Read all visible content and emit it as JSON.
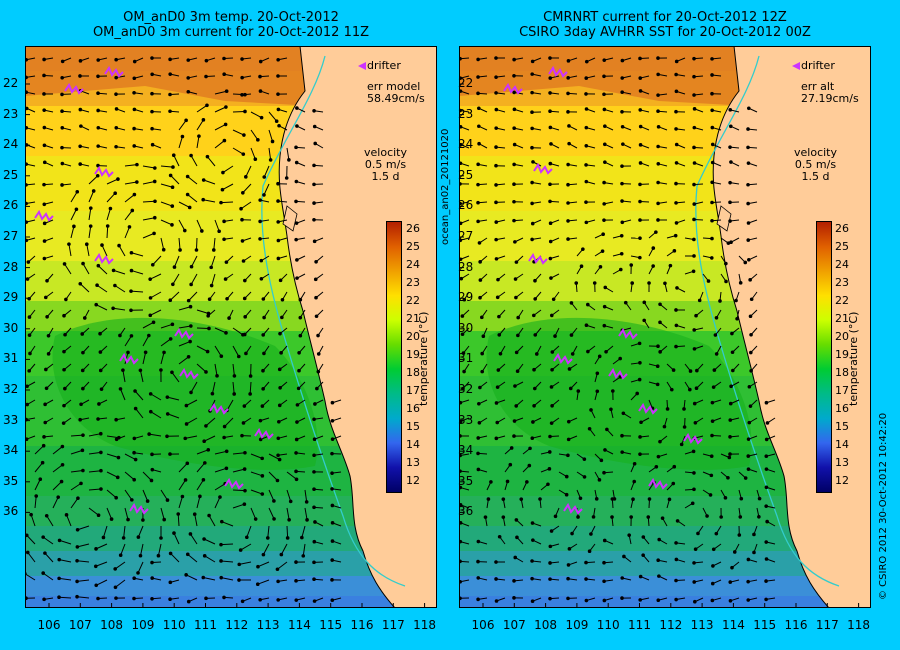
{
  "panels": [
    {
      "title_line1": "OM_anD0 3m temp. 20-Oct-2012",
      "title_line2": "OM_anD0 3m current for 20-Oct-2012 11Z",
      "err_label": "err model",
      "err_value": "58.49cm/s",
      "drifter_label": "drifter",
      "velocity_label": "velocity",
      "velocity_speed": "0.5 m/s",
      "velocity_time": "1.5 d"
    },
    {
      "title_line1": "CMRNRT current for 20-Oct-2012 12Z",
      "title_line2": "CSIRO 3day AVHRR SST for 20-Oct-2012 00Z",
      "err_label": "err alt",
      "err_value": "27.19cm/s",
      "drifter_label": "drifter",
      "velocity_label": "velocity",
      "velocity_speed": "0.5 m/s",
      "velocity_time": "1.5 d"
    }
  ],
  "colorbar": {
    "label": "temperature (°C)",
    "ticks": [
      "26",
      "25",
      "24",
      "23",
      "22",
      "21",
      "20",
      "19",
      "18",
      "17",
      "16",
      "15",
      "14",
      "13",
      "12"
    ]
  },
  "lat_ticks": [
    "22",
    "23",
    "24",
    "25",
    "26",
    "27",
    "28",
    "29",
    "30",
    "31",
    "32",
    "33",
    "34",
    "35",
    "36"
  ],
  "lon_ticks": [
    "106",
    "107",
    "108",
    "109",
    "110",
    "111",
    "112",
    "113",
    "114",
    "115",
    "116",
    "117",
    "118"
  ],
  "side_left": "ocean_an02_20121020",
  "side_right": "© CSIRO 2012   30-Oct-2012 10:42:20",
  "colors": {
    "background": "#00ccff",
    "land": "#ffcc99",
    "drifter": "#cc33ff",
    "coast_contour": "#33cccc"
  }
}
